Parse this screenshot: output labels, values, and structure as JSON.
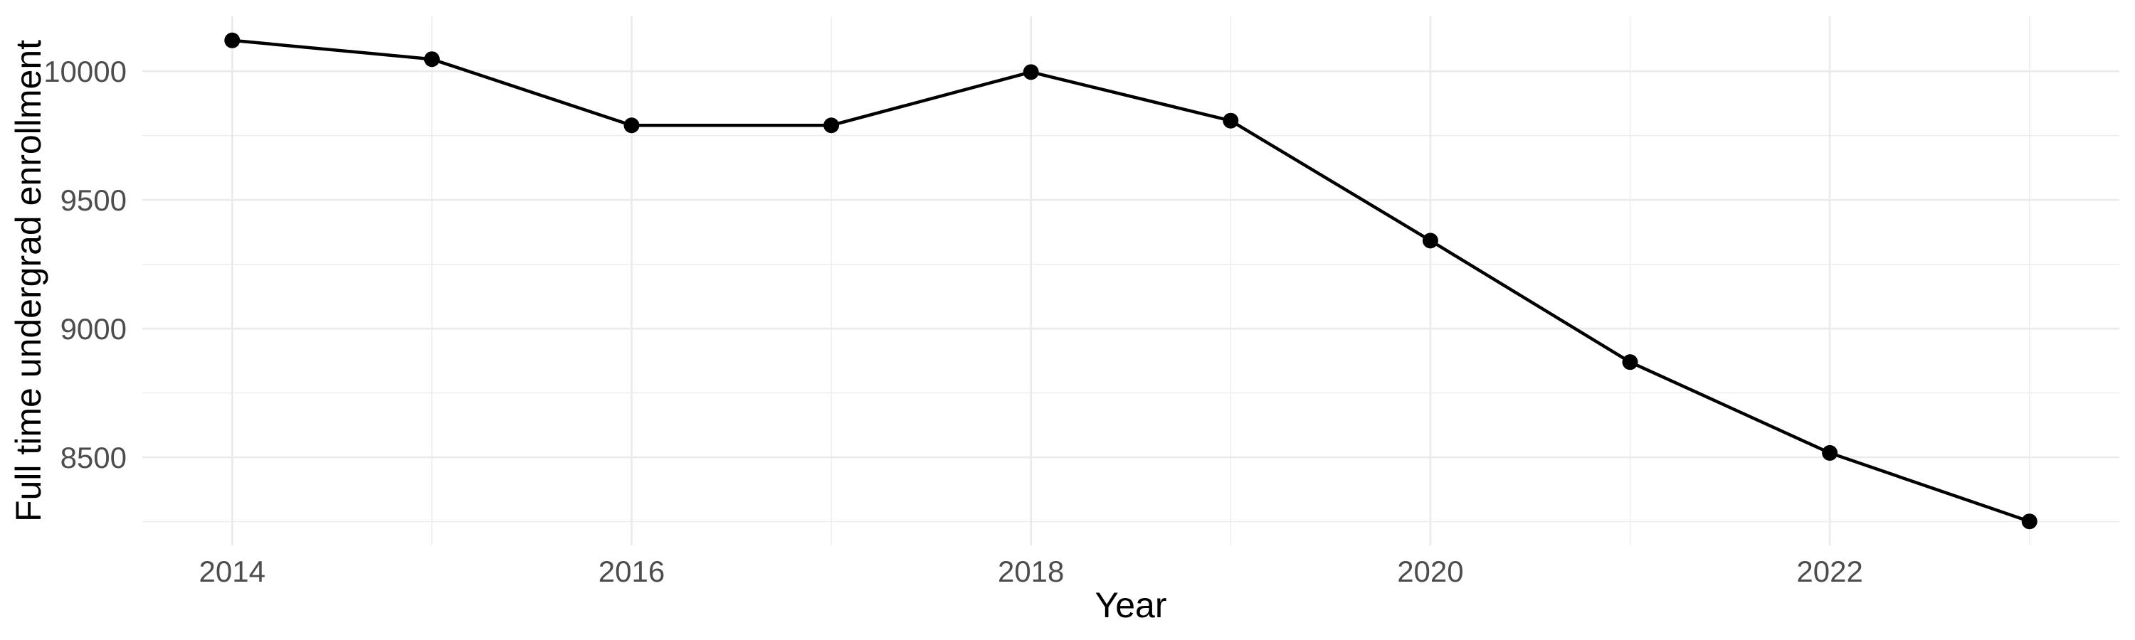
{
  "chart_data": {
    "type": "line",
    "title": "",
    "xlabel": "Year",
    "ylabel": "Full time undergrad enrollment",
    "x": [
      2014,
      2015,
      2016,
      2017,
      2018,
      2019,
      2020,
      2021,
      2022,
      2023
    ],
    "series": [
      {
        "name": "Full time undergrad enrollment",
        "values": [
          10120,
          10047,
          9790,
          9790,
          9997,
          9808,
          9342,
          8870,
          8517,
          8251
        ]
      }
    ],
    "x_ticks_major": [
      2014,
      2016,
      2018,
      2020,
      2022
    ],
    "x_tick_labels": [
      "2014",
      "2016",
      "2018",
      "2020",
      "2022"
    ],
    "x_ticks_minor": [
      2015,
      2017,
      2019,
      2021,
      2023
    ],
    "y_ticks_major": [
      8500,
      9000,
      9500,
      10000
    ],
    "y_tick_labels": [
      "8500",
      "9000",
      "9500",
      "10000"
    ],
    "y_ticks_minor": [
      8250,
      8750,
      9250,
      9750
    ],
    "x_domain": [
      2013.55,
      2023.45
    ],
    "y_domain": [
      8157.6,
      10213.4
    ],
    "grid": true,
    "legend": false,
    "marker": "circle",
    "colors": {
      "line": "#000000",
      "point": "#000000",
      "grid_major": "#EBEBEB",
      "grid_minor": "#ECECEC",
      "tick_label": "#4D4D4D",
      "axis_title": "#000000",
      "background": "#FFFFFF"
    }
  }
}
